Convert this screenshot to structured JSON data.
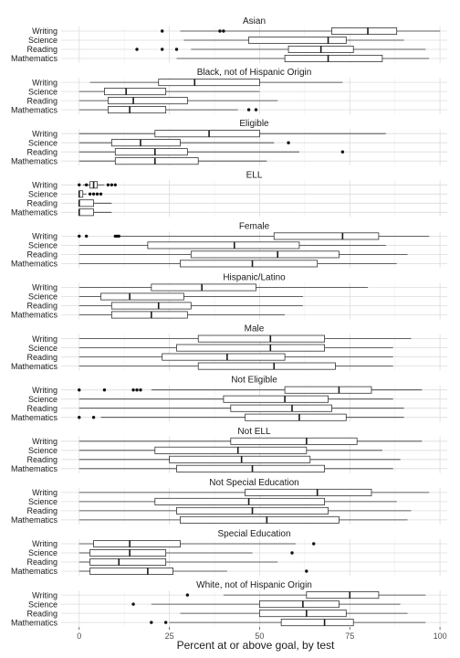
{
  "chart_data": {
    "type": "boxplot",
    "xlabel": "Percent at or above goal, by test",
    "xlim": [
      -5,
      102
    ],
    "x_ticks": [
      0,
      25,
      50,
      75,
      100
    ],
    "grid": true,
    "categories": [
      "Writing",
      "Science",
      "Reading",
      "Mathematics"
    ],
    "facets": [
      {
        "title": "Asian",
        "boxes": [
          {
            "category": "Writing",
            "lower": 28,
            "q1": 70,
            "median": 80,
            "q3": 88,
            "upper": 100,
            "outliers": [
              23,
              39,
              40
            ]
          },
          {
            "category": "Science",
            "lower": 29,
            "q1": 47,
            "median": 69,
            "q3": 74,
            "upper": 90,
            "outliers": []
          },
          {
            "category": "Reading",
            "lower": 31,
            "q1": 58,
            "median": 67,
            "q3": 76,
            "upper": 96,
            "outliers": [
              16,
              23,
              27
            ]
          },
          {
            "category": "Mathematics",
            "lower": 27,
            "q1": 57,
            "median": 69,
            "q3": 84,
            "upper": 97,
            "outliers": []
          }
        ]
      },
      {
        "title": "Black, not of Hispanic Origin",
        "boxes": [
          {
            "category": "Writing",
            "lower": 3,
            "q1": 22,
            "median": 32,
            "q3": 50,
            "upper": 73,
            "outliers": []
          },
          {
            "category": "Science",
            "lower": 0,
            "q1": 7,
            "median": 13,
            "q3": 24,
            "upper": 50,
            "outliers": []
          },
          {
            "category": "Reading",
            "lower": 0,
            "q1": 8,
            "median": 15,
            "q3": 30,
            "upper": 55,
            "outliers": []
          },
          {
            "category": "Mathematics",
            "lower": 0,
            "q1": 8,
            "median": 14,
            "q3": 24,
            "upper": 44,
            "outliers": [
              47,
              49
            ]
          }
        ]
      },
      {
        "title": "Eligible",
        "boxes": [
          {
            "category": "Writing",
            "lower": 0,
            "q1": 21,
            "median": 36,
            "q3": 50,
            "upper": 85,
            "outliers": []
          },
          {
            "category": "Science",
            "lower": 0,
            "q1": 9,
            "median": 17,
            "q3": 28,
            "upper": 54,
            "outliers": [
              58
            ]
          },
          {
            "category": "Reading",
            "lower": 0,
            "q1": 10,
            "median": 21,
            "q3": 30,
            "upper": 61,
            "outliers": [
              73
            ]
          },
          {
            "category": "Mathematics",
            "lower": 0,
            "q1": 10,
            "median": 21,
            "q3": 33,
            "upper": 52,
            "outliers": []
          }
        ]
      },
      {
        "title": "ELL",
        "boxes": [
          {
            "category": "Writing",
            "lower": 1,
            "q1": 3,
            "median": 4,
            "q3": 5,
            "upper": 7,
            "outliers": [
              0,
              2,
              8,
              9,
              10
            ]
          },
          {
            "category": "Science",
            "lower": 0,
            "q1": 0,
            "median": 0,
            "q3": 1,
            "upper": 2,
            "outliers": [
              3,
              4,
              5,
              6
            ]
          },
          {
            "category": "Reading",
            "lower": 0,
            "q1": 0,
            "median": 0,
            "q3": 4,
            "upper": 9,
            "outliers": []
          },
          {
            "category": "Mathematics",
            "lower": 0,
            "q1": 0,
            "median": 0,
            "q3": 4,
            "upper": 9,
            "outliers": []
          }
        ]
      },
      {
        "title": "Female",
        "boxes": [
          {
            "category": "Writing",
            "lower": 11,
            "q1": 54,
            "median": 73,
            "q3": 83,
            "upper": 97,
            "outliers": [
              0,
              2,
              10,
              10.5,
              11
            ]
          },
          {
            "category": "Science",
            "lower": 0,
            "q1": 19,
            "median": 43,
            "q3": 61,
            "upper": 85,
            "outliers": []
          },
          {
            "category": "Reading",
            "lower": 0,
            "q1": 31,
            "median": 55,
            "q3": 72,
            "upper": 91,
            "outliers": []
          },
          {
            "category": "Mathematics",
            "lower": 0,
            "q1": 28,
            "median": 48,
            "q3": 66,
            "upper": 88,
            "outliers": []
          }
        ]
      },
      {
        "title": "Hispanic/Latino",
        "boxes": [
          {
            "category": "Writing",
            "lower": 0,
            "q1": 20,
            "median": 34,
            "q3": 49,
            "upper": 80,
            "outliers": []
          },
          {
            "category": "Science",
            "lower": 0,
            "q1": 6,
            "median": 14,
            "q3": 29,
            "upper": 62,
            "outliers": []
          },
          {
            "category": "Reading",
            "lower": 0,
            "q1": 9,
            "median": 22,
            "q3": 31,
            "upper": 62,
            "outliers": []
          },
          {
            "category": "Mathematics",
            "lower": 0,
            "q1": 9,
            "median": 20,
            "q3": 30,
            "upper": 57,
            "outliers": []
          }
        ]
      },
      {
        "title": "Male",
        "boxes": [
          {
            "category": "Writing",
            "lower": 0,
            "q1": 33,
            "median": 53,
            "q3": 68,
            "upper": 92,
            "outliers": []
          },
          {
            "category": "Science",
            "lower": 0,
            "q1": 27,
            "median": 53,
            "q3": 68,
            "upper": 87,
            "outliers": []
          },
          {
            "category": "Reading",
            "lower": 0,
            "q1": 23,
            "median": 41,
            "q3": 57,
            "upper": 87,
            "outliers": []
          },
          {
            "category": "Mathematics",
            "lower": 0,
            "q1": 33,
            "median": 54,
            "q3": 71,
            "upper": 87,
            "outliers": []
          }
        ]
      },
      {
        "title": "Not Eligible",
        "boxes": [
          {
            "category": "Writing",
            "lower": 20,
            "q1": 57,
            "median": 72,
            "q3": 81,
            "upper": 95,
            "outliers": [
              0,
              7,
              15,
              16,
              17
            ]
          },
          {
            "category": "Science",
            "lower": 0,
            "q1": 40,
            "median": 57,
            "q3": 69,
            "upper": 87,
            "outliers": []
          },
          {
            "category": "Reading",
            "lower": 0,
            "q1": 42,
            "median": 59,
            "q3": 70,
            "upper": 90,
            "outliers": []
          },
          {
            "category": "Mathematics",
            "lower": 6,
            "q1": 46,
            "median": 61,
            "q3": 74,
            "upper": 90,
            "outliers": [
              0,
              4
            ]
          }
        ]
      },
      {
        "title": "Not ELL",
        "boxes": [
          {
            "category": "Writing",
            "lower": 0,
            "q1": 42,
            "median": 63,
            "q3": 77,
            "upper": 95,
            "outliers": []
          },
          {
            "category": "Science",
            "lower": 0,
            "q1": 21,
            "median": 44,
            "q3": 63,
            "upper": 84,
            "outliers": []
          },
          {
            "category": "Reading",
            "lower": 0,
            "q1": 25,
            "median": 45,
            "q3": 64,
            "upper": 89,
            "outliers": []
          },
          {
            "category": "Mathematics",
            "lower": 0,
            "q1": 27,
            "median": 48,
            "q3": 68,
            "upper": 87,
            "outliers": []
          }
        ]
      },
      {
        "title": "Not Special Education",
        "boxes": [
          {
            "category": "Writing",
            "lower": 0,
            "q1": 46,
            "median": 66,
            "q3": 81,
            "upper": 97,
            "outliers": []
          },
          {
            "category": "Science",
            "lower": 0,
            "q1": 21,
            "median": 47,
            "q3": 68,
            "upper": 88,
            "outliers": []
          },
          {
            "category": "Reading",
            "lower": 0,
            "q1": 27,
            "median": 48,
            "q3": 69,
            "upper": 92,
            "outliers": []
          },
          {
            "category": "Mathematics",
            "lower": 0,
            "q1": 28,
            "median": 52,
            "q3": 72,
            "upper": 91,
            "outliers": []
          }
        ]
      },
      {
        "title": "Special Education",
        "boxes": [
          {
            "category": "Writing",
            "lower": 0,
            "q1": 4,
            "median": 14,
            "q3": 28,
            "upper": 60,
            "outliers": [
              65
            ]
          },
          {
            "category": "Science",
            "lower": 0,
            "q1": 3,
            "median": 14,
            "q3": 24,
            "upper": 48,
            "outliers": [
              59
            ]
          },
          {
            "category": "Reading",
            "lower": 0,
            "q1": 3,
            "median": 11,
            "q3": 24,
            "upper": 55,
            "outliers": []
          },
          {
            "category": "Mathematics",
            "lower": 0,
            "q1": 3,
            "median": 19,
            "q3": 26,
            "upper": 41,
            "outliers": [
              63
            ]
          }
        ]
      },
      {
        "title": "White, not of Hispanic Origin",
        "boxes": [
          {
            "category": "Writing",
            "lower": 40,
            "q1": 63,
            "median": 75,
            "q3": 83,
            "upper": 96,
            "outliers": [
              30
            ]
          },
          {
            "category": "Science",
            "lower": 20,
            "q1": 50,
            "median": 62,
            "q3": 72,
            "upper": 89,
            "outliers": [
              15
            ]
          },
          {
            "category": "Reading",
            "lower": 28,
            "q1": 50,
            "median": 63,
            "q3": 74,
            "upper": 91,
            "outliers": []
          },
          {
            "category": "Mathematics",
            "lower": 25,
            "q1": 56,
            "median": 68,
            "q3": 76,
            "upper": 96,
            "outliers": [
              20,
              24
            ]
          }
        ]
      }
    ]
  }
}
